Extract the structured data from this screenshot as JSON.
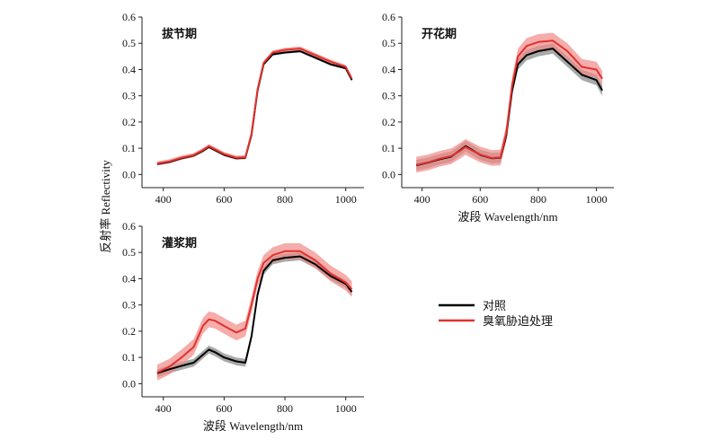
{
  "figure": {
    "ylabel": "反射率 Reflectivity",
    "xlabel": "波段 Wavelength/nm"
  },
  "legend": [
    {
      "name": "对照",
      "color": "#000000"
    },
    {
      "name": "臭氧胁迫处理",
      "color": "#e2312d"
    }
  ],
  "colors": {
    "control_line": "#000000",
    "control_band": "#8c8c8c",
    "treatment_line": "#e2312d",
    "treatment_band": "#f08a86"
  },
  "chart_data": [
    {
      "type": "line",
      "panel": "jointing",
      "title": "拔节期",
      "xticks": [
        400,
        600,
        800,
        1000
      ],
      "yticks": [
        0.0,
        0.1,
        0.2,
        0.3,
        0.4,
        0.5,
        0.6
      ],
      "xlim": [
        330,
        1060
      ],
      "ylim": [
        -0.05,
        0.6
      ],
      "x": [
        380,
        420,
        460,
        500,
        530,
        550,
        570,
        600,
        640,
        670,
        690,
        710,
        730,
        760,
        800,
        850,
        900,
        950,
        1000,
        1020
      ],
      "series": [
        {
          "name": "对照",
          "values": [
            0.04,
            0.048,
            0.062,
            0.072,
            0.09,
            0.105,
            0.093,
            0.075,
            0.062,
            0.064,
            0.15,
            0.32,
            0.42,
            0.458,
            0.465,
            0.47,
            0.445,
            0.42,
            0.405,
            0.36
          ],
          "band": 0.005
        },
        {
          "name": "臭氧胁迫处理",
          "values": [
            0.042,
            0.05,
            0.064,
            0.074,
            0.093,
            0.108,
            0.096,
            0.078,
            0.064,
            0.066,
            0.155,
            0.325,
            0.425,
            0.465,
            0.475,
            0.48,
            0.455,
            0.43,
            0.41,
            0.365
          ],
          "band": 0.008
        }
      ]
    },
    {
      "type": "line",
      "panel": "flowering",
      "title": "开花期",
      "xticks": [
        400,
        600,
        800,
        1000
      ],
      "yticks": [
        0.0,
        0.1,
        0.2,
        0.3,
        0.4,
        0.5,
        0.6
      ],
      "xlim": [
        330,
        1060
      ],
      "ylim": [
        -0.05,
        0.6
      ],
      "x": [
        380,
        420,
        460,
        500,
        530,
        550,
        570,
        600,
        640,
        670,
        690,
        710,
        730,
        760,
        800,
        850,
        900,
        950,
        1000,
        1020
      ],
      "series": [
        {
          "name": "对照",
          "values": [
            0.035,
            0.045,
            0.058,
            0.068,
            0.092,
            0.108,
            0.095,
            0.075,
            0.062,
            0.064,
            0.15,
            0.32,
            0.42,
            0.455,
            0.47,
            0.48,
            0.43,
            0.38,
            0.36,
            0.32
          ],
          "band": 0.02
        },
        {
          "name": "臭氧胁迫处理",
          "values": [
            0.037,
            0.046,
            0.06,
            0.07,
            0.09,
            0.105,
            0.093,
            0.076,
            0.063,
            0.065,
            0.16,
            0.34,
            0.45,
            0.49,
            0.505,
            0.51,
            0.47,
            0.41,
            0.4,
            0.365
          ],
          "band": 0.03
        }
      ]
    },
    {
      "type": "line",
      "panel": "filling",
      "title": "灌浆期",
      "xticks": [
        400,
        600,
        800,
        1000
      ],
      "yticks": [
        0.0,
        0.1,
        0.2,
        0.3,
        0.4,
        0.5,
        0.6
      ],
      "xlim": [
        330,
        1060
      ],
      "ylim": [
        -0.05,
        0.6
      ],
      "x": [
        380,
        420,
        460,
        500,
        530,
        550,
        570,
        600,
        640,
        670,
        690,
        710,
        730,
        760,
        800,
        850,
        900,
        950,
        1000,
        1020
      ],
      "series": [
        {
          "name": "对照",
          "values": [
            0.04,
            0.055,
            0.068,
            0.08,
            0.11,
            0.13,
            0.12,
            0.1,
            0.085,
            0.08,
            0.18,
            0.34,
            0.43,
            0.47,
            0.48,
            0.485,
            0.455,
            0.41,
            0.38,
            0.35
          ],
          "band": 0.015
        },
        {
          "name": "臭氧胁迫处理",
          "values": [
            0.042,
            0.065,
            0.1,
            0.14,
            0.22,
            0.245,
            0.24,
            0.22,
            0.195,
            0.21,
            0.3,
            0.4,
            0.46,
            0.49,
            0.505,
            0.505,
            0.47,
            0.42,
            0.385,
            0.36
          ],
          "band": 0.03
        }
      ]
    }
  ]
}
